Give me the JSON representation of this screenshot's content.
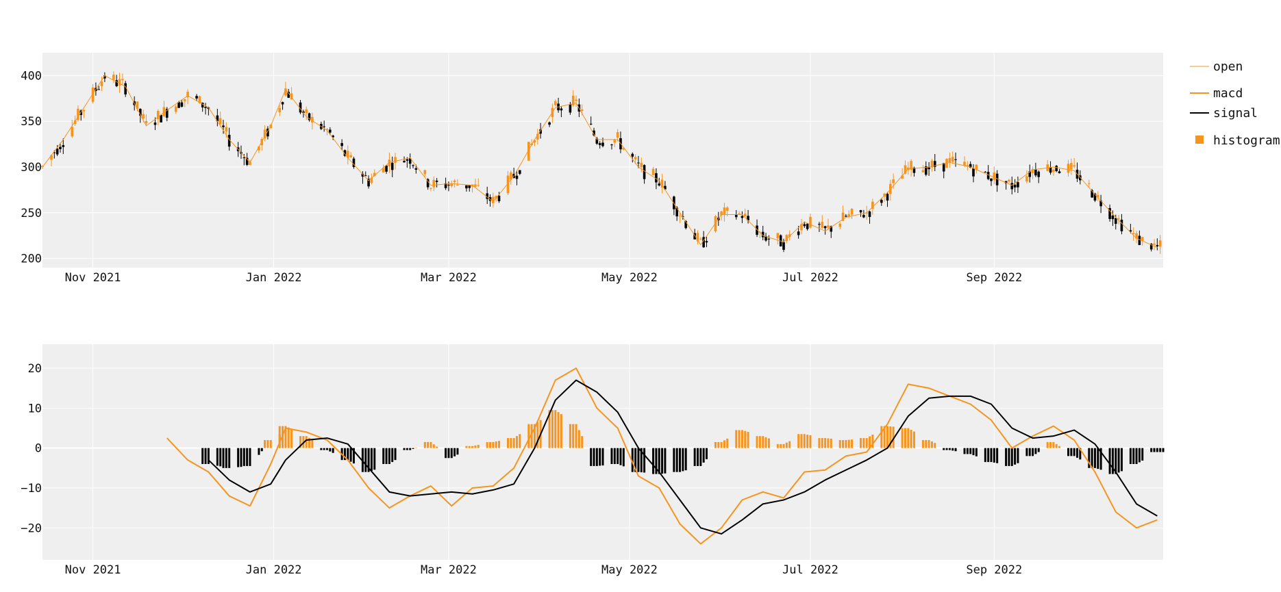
{
  "colors": {
    "up": "#f7941d",
    "down": "#000000",
    "macd": "#f7941d",
    "signal": "#000000",
    "panel_bg": "#efefef",
    "grid": "#ffffff"
  },
  "legend": {
    "items": [
      {
        "label": "open",
        "symbol": "thin-line"
      },
      {
        "label": "macd",
        "symbol": "line"
      },
      {
        "label": "signal",
        "symbol": "line"
      },
      {
        "label": "histogram",
        "symbol": "square"
      }
    ]
  },
  "chart_data": [
    {
      "type": "candlestick",
      "x_range": [
        "2021-10-15",
        "2022-10-28"
      ],
      "xticks": [
        {
          "date": "2021-11-01",
          "label": "Nov 2021"
        },
        {
          "date": "2022-01-01",
          "label": "Jan 2022"
        },
        {
          "date": "2022-03-01",
          "label": "Mar 2022"
        },
        {
          "date": "2022-05-01",
          "label": "May 2022"
        },
        {
          "date": "2022-07-01",
          "label": "Jul 2022"
        },
        {
          "date": "2022-09-01",
          "label": "Sep 2022"
        }
      ],
      "ylim": [
        190,
        425
      ],
      "yticks": [
        200,
        250,
        300,
        350,
        400
      ],
      "open_trend": [
        [
          "2021-10-15",
          300
        ],
        [
          "2021-10-22",
          330
        ],
        [
          "2021-10-29",
          365
        ],
        [
          "2021-11-05",
          400
        ],
        [
          "2021-11-12",
          388
        ],
        [
          "2021-11-19",
          345
        ],
        [
          "2021-11-26",
          362
        ],
        [
          "2021-12-03",
          378
        ],
        [
          "2021-12-10",
          365
        ],
        [
          "2021-12-17",
          330
        ],
        [
          "2021-12-24",
          305
        ],
        [
          "2021-12-31",
          345
        ],
        [
          "2022-01-05",
          385
        ],
        [
          "2022-01-12",
          355
        ],
        [
          "2022-01-19",
          340
        ],
        [
          "2022-01-26",
          310
        ],
        [
          "2022-02-02",
          285
        ],
        [
          "2022-02-09",
          305
        ],
        [
          "2022-02-16",
          310
        ],
        [
          "2022-02-23",
          280
        ],
        [
          "2022-03-02",
          282
        ],
        [
          "2022-03-09",
          280
        ],
        [
          "2022-03-16",
          262
        ],
        [
          "2022-03-23",
          290
        ],
        [
          "2022-03-30",
          330
        ],
        [
          "2022-04-06",
          365
        ],
        [
          "2022-04-13",
          370
        ],
        [
          "2022-04-20",
          330
        ],
        [
          "2022-04-27",
          330
        ],
        [
          "2022-05-04",
          300
        ],
        [
          "2022-05-11",
          285
        ],
        [
          "2022-05-18",
          250
        ],
        [
          "2022-05-25",
          215
        ],
        [
          "2022-06-01",
          248
        ],
        [
          "2022-06-08",
          248
        ],
        [
          "2022-06-15",
          225
        ],
        [
          "2022-06-22",
          218
        ],
        [
          "2022-06-29",
          240
        ],
        [
          "2022-07-06",
          230
        ],
        [
          "2022-07-13",
          245
        ],
        [
          "2022-07-20",
          250
        ],
        [
          "2022-07-27",
          272
        ],
        [
          "2022-08-03",
          298
        ],
        [
          "2022-08-10",
          300
        ],
        [
          "2022-08-17",
          305
        ],
        [
          "2022-08-24",
          300
        ],
        [
          "2022-08-31",
          290
        ],
        [
          "2022-09-07",
          280
        ],
        [
          "2022-09-14",
          297
        ],
        [
          "2022-09-21",
          300
        ],
        [
          "2022-09-28",
          296
        ],
        [
          "2022-10-05",
          270
        ],
        [
          "2022-10-12",
          245
        ],
        [
          "2022-10-19",
          222
        ],
        [
          "2022-10-26",
          212
        ]
      ]
    },
    {
      "type": "line+bar",
      "x_range": [
        "2021-10-15",
        "2022-10-28"
      ],
      "ylim": [
        -28,
        26
      ],
      "yticks": [
        20,
        10,
        0,
        -10,
        -20
      ],
      "series": [
        {
          "name": "macd",
          "points": [
            [
              "2021-11-26",
              2.5
            ],
            [
              "2021-12-03",
              -3
            ],
            [
              "2021-12-10",
              -6
            ],
            [
              "2021-12-17",
              -12
            ],
            [
              "2021-12-24",
              -14.5
            ],
            [
              "2021-12-31",
              -4
            ],
            [
              "2022-01-05",
              5
            ],
            [
              "2022-01-12",
              4
            ],
            [
              "2022-01-19",
              2
            ],
            [
              "2022-01-26",
              -3
            ],
            [
              "2022-02-02",
              -10
            ],
            [
              "2022-02-09",
              -15
            ],
            [
              "2022-02-16",
              -12
            ],
            [
              "2022-02-23",
              -9.5
            ],
            [
              "2022-03-02",
              -14.5
            ],
            [
              "2022-03-09",
              -10
            ],
            [
              "2022-03-16",
              -9.5
            ],
            [
              "2022-03-23",
              -5
            ],
            [
              "2022-03-30",
              5
            ],
            [
              "2022-04-06",
              17
            ],
            [
              "2022-04-13",
              20
            ],
            [
              "2022-04-20",
              10
            ],
            [
              "2022-04-27",
              5
            ],
            [
              "2022-05-04",
              -7
            ],
            [
              "2022-05-11",
              -10
            ],
            [
              "2022-05-18",
              -19
            ],
            [
              "2022-05-25",
              -24
            ],
            [
              "2022-06-01",
              -20
            ],
            [
              "2022-06-08",
              -13
            ],
            [
              "2022-06-15",
              -11
            ],
            [
              "2022-06-22",
              -12.5
            ],
            [
              "2022-06-29",
              -6
            ],
            [
              "2022-07-06",
              -5.5
            ],
            [
              "2022-07-13",
              -2
            ],
            [
              "2022-07-20",
              -1
            ],
            [
              "2022-07-27",
              6
            ],
            [
              "2022-08-03",
              16
            ],
            [
              "2022-08-10",
              15
            ],
            [
              "2022-08-17",
              13
            ],
            [
              "2022-08-24",
              11
            ],
            [
              "2022-08-31",
              7
            ],
            [
              "2022-09-07",
              0
            ],
            [
              "2022-09-14",
              3
            ],
            [
              "2022-09-21",
              5.5
            ],
            [
              "2022-09-28",
              2
            ],
            [
              "2022-10-05",
              -6
            ],
            [
              "2022-10-12",
              -16
            ],
            [
              "2022-10-19",
              -20
            ],
            [
              "2022-10-26",
              -18
            ]
          ]
        },
        {
          "name": "signal",
          "points": [
            [
              "2021-12-10",
              -3
            ],
            [
              "2021-12-17",
              -8
            ],
            [
              "2021-12-24",
              -11
            ],
            [
              "2021-12-31",
              -9
            ],
            [
              "2022-01-05",
              -3
            ],
            [
              "2022-01-12",
              2
            ],
            [
              "2022-01-19",
              2.5
            ],
            [
              "2022-01-26",
              1
            ],
            [
              "2022-02-02",
              -5
            ],
            [
              "2022-02-09",
              -11
            ],
            [
              "2022-02-16",
              -12
            ],
            [
              "2022-02-23",
              -11.5
            ],
            [
              "2022-03-02",
              -11
            ],
            [
              "2022-03-09",
              -11.5
            ],
            [
              "2022-03-16",
              -10.5
            ],
            [
              "2022-03-23",
              -9
            ],
            [
              "2022-03-30",
              0
            ],
            [
              "2022-04-06",
              12
            ],
            [
              "2022-04-13",
              17
            ],
            [
              "2022-04-20",
              14
            ],
            [
              "2022-04-27",
              9
            ],
            [
              "2022-05-04",
              0
            ],
            [
              "2022-05-11",
              -6
            ],
            [
              "2022-05-18",
              -13
            ],
            [
              "2022-05-25",
              -20
            ],
            [
              "2022-06-01",
              -21.5
            ],
            [
              "2022-06-08",
              -18
            ],
            [
              "2022-06-15",
              -14
            ],
            [
              "2022-06-22",
              -13
            ],
            [
              "2022-06-29",
              -11
            ],
            [
              "2022-07-06",
              -8
            ],
            [
              "2022-07-13",
              -5.5
            ],
            [
              "2022-07-20",
              -3
            ],
            [
              "2022-07-27",
              0
            ],
            [
              "2022-08-03",
              8
            ],
            [
              "2022-08-10",
              12.5
            ],
            [
              "2022-08-17",
              13
            ],
            [
              "2022-08-24",
              13
            ],
            [
              "2022-08-31",
              11
            ],
            [
              "2022-09-07",
              5
            ],
            [
              "2022-09-14",
              2.5
            ],
            [
              "2022-09-21",
              3
            ],
            [
              "2022-09-28",
              4.5
            ],
            [
              "2022-10-05",
              1
            ],
            [
              "2022-10-12",
              -6
            ],
            [
              "2022-10-19",
              -14
            ],
            [
              "2022-10-26",
              -17
            ]
          ]
        },
        {
          "name": "histogram",
          "points": [
            [
              "2021-12-10",
              -4
            ],
            [
              "2021-12-17",
              -5
            ],
            [
              "2021-12-24",
              -4.5
            ],
            [
              "2021-12-31",
              2
            ],
            [
              "2022-01-05",
              5.5
            ],
            [
              "2022-01-12",
              3
            ],
            [
              "2022-01-19",
              -0.5
            ],
            [
              "2022-01-26",
              -3
            ],
            [
              "2022-02-02",
              -6
            ],
            [
              "2022-02-09",
              -4
            ],
            [
              "2022-02-16",
              -0.5
            ],
            [
              "2022-02-23",
              1.5
            ],
            [
              "2022-03-02",
              -2.5
            ],
            [
              "2022-03-09",
              0.5
            ],
            [
              "2022-03-16",
              1.5
            ],
            [
              "2022-03-23",
              2.5
            ],
            [
              "2022-03-30",
              6
            ],
            [
              "2022-04-06",
              9.5
            ],
            [
              "2022-04-13",
              6
            ],
            [
              "2022-04-20",
              -4.5
            ],
            [
              "2022-04-27",
              -4
            ],
            [
              "2022-05-04",
              -6
            ],
            [
              "2022-05-11",
              -6.5
            ],
            [
              "2022-05-18",
              -6
            ],
            [
              "2022-05-25",
              -4.5
            ],
            [
              "2022-06-01",
              1.5
            ],
            [
              "2022-06-08",
              4.5
            ],
            [
              "2022-06-15",
              3
            ],
            [
              "2022-06-22",
              1
            ],
            [
              "2022-06-29",
              3.5
            ],
            [
              "2022-07-06",
              2.5
            ],
            [
              "2022-07-13",
              2
            ],
            [
              "2022-07-20",
              2.5
            ],
            [
              "2022-07-27",
              5.5
            ],
            [
              "2022-08-03",
              5
            ],
            [
              "2022-08-10",
              2
            ],
            [
              "2022-08-17",
              -0.5
            ],
            [
              "2022-08-24",
              -1.5
            ],
            [
              "2022-08-31",
              -3.5
            ],
            [
              "2022-09-07",
              -4.5
            ],
            [
              "2022-09-14",
              -2
            ],
            [
              "2022-09-21",
              1.5
            ],
            [
              "2022-09-28",
              -2
            ],
            [
              "2022-10-05",
              -5
            ],
            [
              "2022-10-12",
              -6.5
            ],
            [
              "2022-10-19",
              -4
            ],
            [
              "2022-10-26",
              -1
            ]
          ]
        }
      ]
    }
  ]
}
